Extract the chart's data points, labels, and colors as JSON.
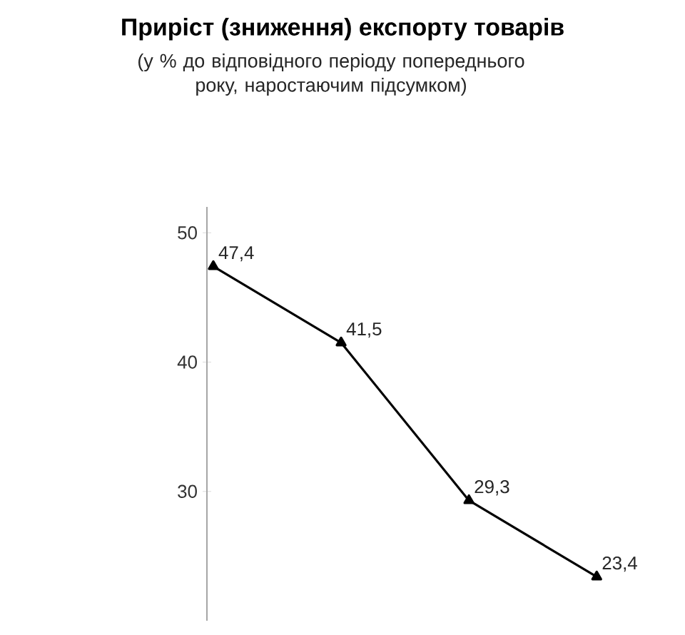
{
  "chart_data": {
    "type": "line",
    "title": "Приріст (зниження) експорту товарів",
    "subtitle": "(у % до відповідного періоду попереднього року, наростаючим підсумком)",
    "categories": [
      null,
      null,
      null,
      null
    ],
    "series": [
      {
        "color": "#000000",
        "values": [
          47.4,
          41.5,
          29.3,
          23.4
        ],
        "value_labels": [
          "47,4",
          "41,5",
          "29,3",
          "23,4"
        ]
      }
    ],
    "ylim": [
      20,
      52
    ],
    "yticks": [
      30,
      40,
      50
    ],
    "marker": "triangle",
    "line_style": "solid",
    "tick_labels": "y"
  }
}
